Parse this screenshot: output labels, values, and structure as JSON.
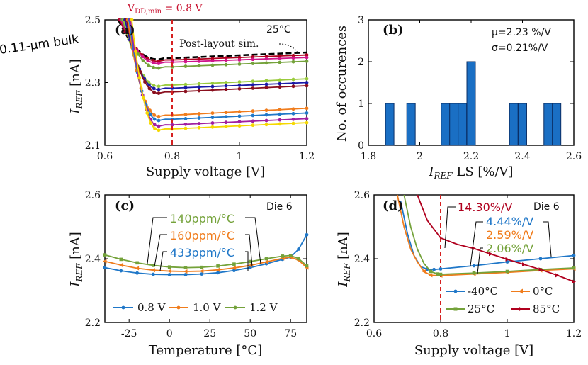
{
  "header": {
    "process_label": "0.11-µm bulk"
  },
  "colors": {
    "blue": "#1f77c8",
    "orange": "#f07c1c",
    "green": "#74a23a",
    "red": "#b0001e",
    "black": "#000000",
    "yellow": "#f5d800",
    "purple": "#a01fa0",
    "magenta": "#d0158a",
    "lime": "#9acb3c",
    "navy": "#1a1aa8",
    "maroon": "#8a0f1e",
    "dashred": "#d62020"
  },
  "chart_data": [
    {
      "id": "a",
      "type": "line",
      "panel_label": "(a)",
      "xlabel": "Supply voltage [V]",
      "ylabel_main": "I",
      "ylabel_sub": "REF",
      "ylabel_unit": " [nA]",
      "xlim": [
        0.6,
        1.2
      ],
      "ylim": [
        2.1,
        2.5
      ],
      "xticks": [
        "0.6",
        "0.8",
        "1",
        "1.2"
      ],
      "yticks": [
        "2.1",
        "2.3",
        "2.5"
      ],
      "temp_label": "25°C",
      "sim_label": "Post-layout sim.",
      "vline_label": "V",
      "vline_sub": "DD,min",
      "vline_value": " = 0.8 V",
      "vline_x": 0.8,
      "curve_start": [
        0.64,
        2.5
      ],
      "knee_x": 0.68,
      "settle_x": 0.76,
      "series": [
        {
          "name": "sim",
          "color": "#000000",
          "v8": 2.378,
          "v12": 2.396,
          "dashed": true
        },
        {
          "name": "c1",
          "color": "#b0001e",
          "v8": 2.372,
          "v12": 2.388
        },
        {
          "name": "c2",
          "color": "#d0158a",
          "v8": 2.365,
          "v12": 2.38
        },
        {
          "name": "c3",
          "color": "#74a23a",
          "v8": 2.35,
          "v12": 2.368
        },
        {
          "name": "c4",
          "color": "#9acb3c",
          "v8": 2.292,
          "v12": 2.312
        },
        {
          "name": "c5",
          "color": "#1a1aa8",
          "v8": 2.282,
          "v12": 2.3
        },
        {
          "name": "c6",
          "color": "#8a0f1e",
          "v8": 2.27,
          "v12": 2.29
        },
        {
          "name": "c7",
          "color": "#f07c1c",
          "v8": 2.196,
          "v12": 2.218
        },
        {
          "name": "c8",
          "color": "#1f77c8",
          "v8": 2.183,
          "v12": 2.203
        },
        {
          "name": "c9",
          "color": "#a01fa0",
          "v8": 2.165,
          "v12": 2.185
        },
        {
          "name": "c10",
          "color": "#f5d800",
          "v8": 2.152,
          "v12": 2.172
        }
      ]
    },
    {
      "id": "b",
      "type": "bar",
      "panel_label": "(b)",
      "xlabel_main": "I",
      "xlabel_sub": "REF",
      "xlabel_rest": " LS [%/V]",
      "ylabel": "No. of occurences",
      "xlim": [
        1.8,
        2.6
      ],
      "ylim": [
        0,
        3
      ],
      "xticks": [
        "1.8",
        "2",
        "2.2",
        "2.4",
        "2.6"
      ],
      "yticks": [
        "0",
        "1",
        "2",
        "3"
      ],
      "mu_label": "µ=2.23 %/V",
      "sigma_label": "σ=0.21%/V",
      "bin_width": 0.033,
      "bins": [
        {
          "x": 1.883,
          "count": 1
        },
        {
          "x": 1.966,
          "count": 1
        },
        {
          "x": 2.1,
          "count": 1
        },
        {
          "x": 2.133,
          "count": 1
        },
        {
          "x": 2.166,
          "count": 1
        },
        {
          "x": 2.2,
          "count": 2
        },
        {
          "x": 2.366,
          "count": 1
        },
        {
          "x": 2.4,
          "count": 1
        },
        {
          "x": 2.5,
          "count": 1
        },
        {
          "x": 2.533,
          "count": 1
        }
      ]
    },
    {
      "id": "c",
      "type": "line",
      "panel_label": "(c)",
      "die_label": "Die 6",
      "xlabel": "Temperature [°C]",
      "ylabel_main": "I",
      "ylabel_sub": "REF",
      "ylabel_unit": " [nA]",
      "xlim": [
        -40,
        85
      ],
      "ylim": [
        2.2,
        2.6
      ],
      "xticks": [
        "-25",
        "0",
        "25",
        "50",
        "75"
      ],
      "yticks": [
        "2.2",
        "2.4",
        "2.6"
      ],
      "tc_labels": [
        "140ppm/°C",
        "160ppm/°C",
        "433ppm/°C"
      ],
      "series": [
        {
          "name": "0.8 V",
          "color": "#1f77c8",
          "x": [
            -40,
            -30,
            -20,
            -10,
            0,
            10,
            20,
            30,
            40,
            50,
            60,
            70,
            75,
            80,
            85
          ],
          "y": [
            2.372,
            2.362,
            2.355,
            2.351,
            2.35,
            2.35,
            2.352,
            2.356,
            2.363,
            2.372,
            2.384,
            2.398,
            2.405,
            2.43,
            2.475
          ]
        },
        {
          "name": "1.0 V",
          "color": "#f07c1c",
          "x": [
            -40,
            -30,
            -20,
            -10,
            0,
            10,
            20,
            30,
            40,
            50,
            60,
            70,
            75,
            80,
            85
          ],
          "y": [
            2.392,
            2.38,
            2.37,
            2.364,
            2.361,
            2.36,
            2.361,
            2.365,
            2.371,
            2.379,
            2.39,
            2.401,
            2.405,
            2.395,
            2.372
          ]
        },
        {
          "name": "1.2 V",
          "color": "#74a23a",
          "x": [
            -40,
            -30,
            -20,
            -10,
            0,
            10,
            20,
            30,
            40,
            50,
            60,
            70,
            75,
            80,
            85
          ],
          "y": [
            2.412,
            2.398,
            2.387,
            2.379,
            2.374,
            2.372,
            2.373,
            2.377,
            2.383,
            2.391,
            2.4,
            2.408,
            2.41,
            2.4,
            2.378
          ]
        }
      ]
    },
    {
      "id": "d",
      "type": "line",
      "panel_label": "(d)",
      "die_label": "Die 6",
      "xlabel": "Supply voltage [V]",
      "ylabel_main": "I",
      "ylabel_sub": "REF",
      "ylabel_unit": " [nA]",
      "xlim": [
        0.6,
        1.2
      ],
      "ylim": [
        2.2,
        2.6
      ],
      "xticks": [
        "0.6",
        "0.8",
        "1",
        "1.2"
      ],
      "yticks": [
        "2.2",
        "2.4",
        "2.6"
      ],
      "vline_x": 0.8,
      "ls_labels": [
        "14.30%/V",
        "4.44%/V",
        "2.59%/V",
        "2.06%/V"
      ],
      "series": [
        {
          "name": "-40°C",
          "color": "#1f77c8",
          "x": [
            0.68,
            0.7,
            0.72,
            0.74,
            0.76,
            0.78,
            0.8,
            0.9,
            1.0,
            1.1,
            1.2
          ],
          "y": [
            2.58,
            2.48,
            2.41,
            2.375,
            2.367,
            2.366,
            2.368,
            2.378,
            2.39,
            2.4,
            2.41
          ]
        },
        {
          "name": "0°C",
          "color": "#f07c1c",
          "x": [
            0.67,
            0.69,
            0.71,
            0.73,
            0.75,
            0.77,
            0.8,
            0.9,
            1.0,
            1.1,
            1.2
          ],
          "y": [
            2.6,
            2.5,
            2.43,
            2.39,
            2.36,
            2.348,
            2.347,
            2.352,
            2.357,
            2.363,
            2.368
          ]
        },
        {
          "name": "25°C",
          "color": "#74a23a",
          "x": [
            0.69,
            0.71,
            0.73,
            0.75,
            0.77,
            0.79,
            0.8,
            0.9,
            1.0,
            1.1,
            1.2
          ],
          "y": [
            2.6,
            2.5,
            2.43,
            2.385,
            2.36,
            2.352,
            2.351,
            2.355,
            2.36,
            2.366,
            2.371
          ]
        },
        {
          "name": "85°C",
          "color": "#b0001e",
          "x": [
            0.73,
            0.76,
            0.8,
            0.85,
            0.9,
            0.95,
            1.0,
            1.05,
            1.1,
            1.15,
            1.2
          ],
          "y": [
            2.6,
            2.52,
            2.465,
            2.445,
            2.432,
            2.415,
            2.398,
            2.382,
            2.366,
            2.348,
            2.328
          ]
        }
      ]
    }
  ]
}
